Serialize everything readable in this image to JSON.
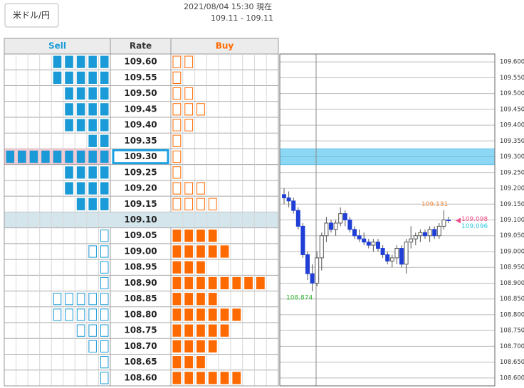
{
  "header": {
    "pair_button": "米ドル/円",
    "timestamp": "2021/08/04 15:30 現在",
    "bid_ask": "109.11 - 109.11"
  },
  "order_book": {
    "columns": {
      "sell": "Sell",
      "rate": "Rate",
      "buy": "Buy"
    },
    "sell_color": "#1a9ad6",
    "buy_color": "#ff6a00",
    "rows": [
      {
        "rate": "109.60",
        "sell": 5,
        "buy": 2
      },
      {
        "rate": "109.55",
        "sell": 5,
        "buy": 1
      },
      {
        "rate": "109.50",
        "sell": 4,
        "buy": 2
      },
      {
        "rate": "109.45",
        "sell": 4,
        "buy": 3
      },
      {
        "rate": "109.40",
        "sell": 4,
        "buy": 2
      },
      {
        "rate": "109.35",
        "sell": 2,
        "buy": 1
      },
      {
        "rate": "109.30",
        "sell": 9,
        "buy": 1,
        "state": "selected"
      },
      {
        "rate": "109.25",
        "sell": 4,
        "buy": 1
      },
      {
        "rate": "109.20",
        "sell": 4,
        "buy": 3
      },
      {
        "rate": "109.15",
        "sell": 3,
        "buy": 4
      },
      {
        "rate": "109.10",
        "sell": 0,
        "buy": 0,
        "state": "current"
      },
      {
        "rate": "109.05",
        "sell": 1,
        "buy": 4
      },
      {
        "rate": "109.00",
        "sell": 2,
        "buy": 5
      },
      {
        "rate": "108.95",
        "sell": 1,
        "buy": 3
      },
      {
        "rate": "108.90",
        "sell": 1,
        "buy": 8
      },
      {
        "rate": "108.85",
        "sell": 5,
        "buy": 4
      },
      {
        "rate": "108.80",
        "sell": 5,
        "buy": 6
      },
      {
        "rate": "108.75",
        "sell": 3,
        "buy": 5
      },
      {
        "rate": "108.70",
        "sell": 2,
        "buy": 4
      },
      {
        "rate": "108.65",
        "sell": 1,
        "buy": 3
      },
      {
        "rate": "108.60",
        "sell": 1,
        "buy": 6
      }
    ]
  },
  "chart_data": {
    "type": "candlestick",
    "up_color": "#ffffff",
    "down_color": "#1f3fd6",
    "band_color": "#5cc8f0",
    "ylim": [
      108.575,
      109.625
    ],
    "yticks": [
      {
        "value": 109.6,
        "label": "109.600"
      },
      {
        "value": 109.55,
        "label": "109.550"
      },
      {
        "value": 109.5,
        "label": "109.500"
      },
      {
        "value": 109.45,
        "label": "109.450"
      },
      {
        "value": 109.4,
        "label": "109.400"
      },
      {
        "value": 109.35,
        "label": "109.350"
      },
      {
        "value": 109.3,
        "label": "109.300"
      },
      {
        "value": 109.25,
        "label": "109.250"
      },
      {
        "value": 109.2,
        "label": "109.200"
      },
      {
        "value": 109.15,
        "label": "109.150"
      },
      {
        "value": 109.1,
        "label": "109.100"
      },
      {
        "value": 109.05,
        "label": "109.050"
      },
      {
        "value": 109.0,
        "label": "109.000"
      },
      {
        "value": 108.95,
        "label": "108.950"
      },
      {
        "value": 108.9,
        "label": "108.900"
      },
      {
        "value": 108.85,
        "label": "108.850"
      },
      {
        "value": 108.8,
        "label": "108.800"
      },
      {
        "value": 108.75,
        "label": "108.750"
      },
      {
        "value": 108.7,
        "label": "108.700"
      },
      {
        "value": 108.65,
        "label": "108.650"
      },
      {
        "value": 108.6,
        "label": "108.600"
      }
    ],
    "candles": [
      {
        "open": 109.18,
        "high": 109.2,
        "low": 109.15,
        "close": 109.17
      },
      {
        "open": 109.17,
        "high": 109.19,
        "low": 109.14,
        "close": 109.16
      },
      {
        "open": 109.16,
        "high": 109.17,
        "low": 109.12,
        "close": 109.13
      },
      {
        "open": 109.13,
        "high": 109.14,
        "low": 109.07,
        "close": 109.08
      },
      {
        "open": 109.08,
        "high": 109.09,
        "low": 108.98,
        "close": 108.99
      },
      {
        "open": 108.99,
        "high": 109.0,
        "low": 108.91,
        "close": 108.93
      },
      {
        "open": 108.93,
        "high": 108.96,
        "low": 108.874,
        "close": 108.9
      },
      {
        "open": 108.9,
        "high": 109.0,
        "low": 108.89,
        "close": 108.98
      },
      {
        "open": 108.98,
        "high": 109.06,
        "low": 108.94,
        "close": 109.05
      },
      {
        "open": 109.05,
        "high": 109.11,
        "low": 109.03,
        "close": 109.09
      },
      {
        "open": 109.09,
        "high": 109.1,
        "low": 109.06,
        "close": 109.07
      },
      {
        "open": 109.07,
        "high": 109.1,
        "low": 109.05,
        "close": 109.09
      },
      {
        "open": 109.09,
        "high": 109.14,
        "low": 109.08,
        "close": 109.12
      },
      {
        "open": 109.12,
        "high": 109.13,
        "low": 109.08,
        "close": 109.1
      },
      {
        "open": 109.1,
        "high": 109.11,
        "low": 109.06,
        "close": 109.07
      },
      {
        "open": 109.07,
        "high": 109.08,
        "low": 109.04,
        "close": 109.05
      },
      {
        "open": 109.05,
        "high": 109.07,
        "low": 109.03,
        "close": 109.04
      },
      {
        "open": 109.04,
        "high": 109.06,
        "low": 109.02,
        "close": 109.03
      },
      {
        "open": 109.03,
        "high": 109.04,
        "low": 109.01,
        "close": 109.02
      },
      {
        "open": 109.02,
        "high": 109.04,
        "low": 109.0,
        "close": 109.03
      },
      {
        "open": 109.03,
        "high": 109.04,
        "low": 109.0,
        "close": 109.01
      },
      {
        "open": 109.01,
        "high": 109.02,
        "low": 108.98,
        "close": 108.99
      },
      {
        "open": 108.99,
        "high": 109.0,
        "low": 108.96,
        "close": 108.97
      },
      {
        "open": 108.97,
        "high": 108.99,
        "low": 108.95,
        "close": 108.98
      },
      {
        "open": 108.98,
        "high": 109.02,
        "low": 108.96,
        "close": 109.01
      },
      {
        "open": 109.01,
        "high": 109.02,
        "low": 108.95,
        "close": 108.96
      },
      {
        "open": 108.96,
        "high": 109.04,
        "low": 108.93,
        "close": 109.03
      },
      {
        "open": 109.03,
        "high": 109.08,
        "low": 109.01,
        "close": 109.04
      },
      {
        "open": 109.04,
        "high": 109.06,
        "low": 109.02,
        "close": 109.05
      },
      {
        "open": 109.05,
        "high": 109.07,
        "low": 109.03,
        "close": 109.06
      },
      {
        "open": 109.06,
        "high": 109.07,
        "low": 109.04,
        "close": 109.05
      },
      {
        "open": 109.05,
        "high": 109.08,
        "low": 109.03,
        "close": 109.07
      },
      {
        "open": 109.07,
        "high": 109.08,
        "low": 109.04,
        "close": 109.05
      },
      {
        "open": 109.05,
        "high": 109.09,
        "low": 109.04,
        "close": 109.08
      },
      {
        "open": 109.08,
        "high": 109.131,
        "low": 109.07,
        "close": 109.1
      },
      {
        "open": 109.1,
        "high": 109.11,
        "low": 109.09,
        "close": 109.098
      }
    ],
    "annotations": [
      {
        "value": 109.131,
        "color": "#f08a3c"
      },
      {
        "value": 109.098,
        "color": "#f0508a"
      },
      {
        "value": 109.096,
        "color": "#30c8e0"
      },
      {
        "value": 108.874,
        "color": "#30b030"
      }
    ]
  }
}
